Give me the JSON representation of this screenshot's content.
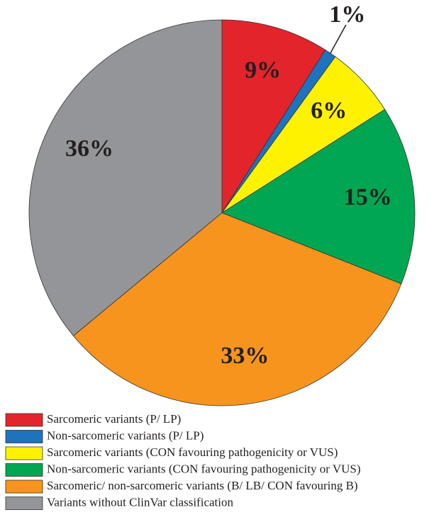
{
  "chart_data": {
    "type": "pie",
    "categories": [
      "Sarcomeric variants (P/ LP)",
      "Non-sarcomeric variants (P/ LP)",
      "Sarcomeric variants (CON favouring pathogenicity or VUS)",
      "Non-sarcomeric variants (CON favouring pathogenicity or VUS)",
      "Sarcomeric/ non-sarcomeric variants (B/ LB/ CON favouring B)",
      "Variants without ClinVar classification"
    ],
    "values": [
      9,
      1,
      6,
      15,
      33,
      36
    ],
    "value_labels": [
      "9%",
      "1%",
      "6%",
      "15%",
      "33%",
      "36%"
    ],
    "colors": [
      "#e3242b",
      "#1e73be",
      "#fff200",
      "#00a651",
      "#f7941d",
      "#939598"
    ]
  }
}
